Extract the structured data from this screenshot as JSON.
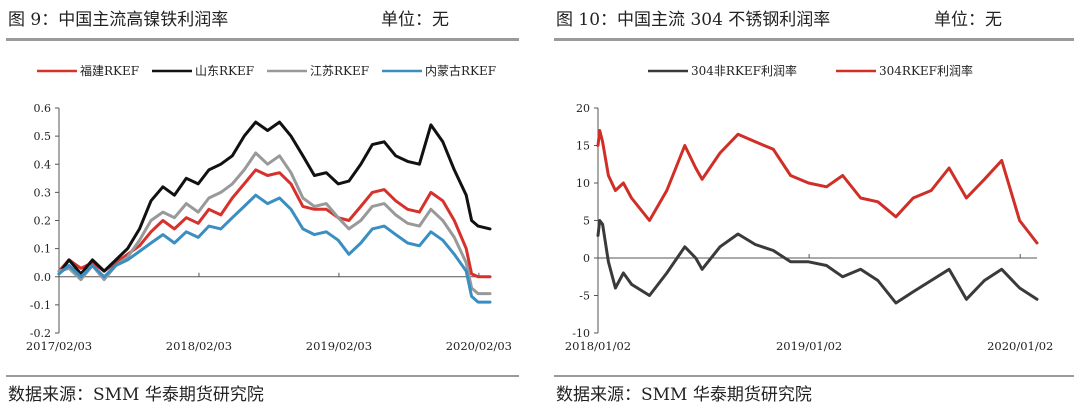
{
  "charts": [
    {
      "title": "图 9：中国主流高镍铁利润率",
      "unit": "单位：无",
      "source": "数据来源：SMM 华泰期货研究院"
    },
    {
      "title": "图 10：中国主流 304 不锈钢利润率",
      "unit": "单位：无",
      "source": "数据来源：SMM 华泰期货研究院"
    }
  ],
  "chart_data": [
    {
      "type": "line",
      "title": "图 9：中国主流高镍铁利润率",
      "ylim": [
        -0.2,
        0.6
      ],
      "y_ticks": [
        "-0.2",
        "-0.1",
        "0.0",
        "0.1",
        "0.2",
        "0.3",
        "0.4",
        "0.5",
        "0.6"
      ],
      "x_range": [
        "2017/02/03",
        "2020/03/03"
      ],
      "x_ticks": [
        "2017/02/03",
        "2018/02/03",
        "2019/02/03",
        "2020/02/03"
      ],
      "legend_position": "top",
      "grid": false,
      "series": [
        {
          "name": "福建RKEF",
          "color": "#d7312b",
          "points": [
            [
              "2017/02/03",
              0.02
            ],
            [
              "2017/03/01",
              0.06
            ],
            [
              "2017/04/01",
              0.03
            ],
            [
              "2017/05/01",
              0.05
            ],
            [
              "2017/06/01",
              0.02
            ],
            [
              "2017/07/01",
              0.05
            ],
            [
              "2017/08/01",
              0.08
            ],
            [
              "2017/09/01",
              0.11
            ],
            [
              "2017/10/01",
              0.16
            ],
            [
              "2017/11/01",
              0.2
            ],
            [
              "2017/12/01",
              0.17
            ],
            [
              "2018/01/01",
              0.21
            ],
            [
              "2018/02/01",
              0.19
            ],
            [
              "2018/03/01",
              0.24
            ],
            [
              "2018/04/01",
              0.22
            ],
            [
              "2018/05/01",
              0.28
            ],
            [
              "2018/06/01",
              0.33
            ],
            [
              "2018/07/01",
              0.38
            ],
            [
              "2018/08/01",
              0.36
            ],
            [
              "2018/09/01",
              0.37
            ],
            [
              "2018/10/01",
              0.33
            ],
            [
              "2018/11/01",
              0.25
            ],
            [
              "2018/12/01",
              0.24
            ],
            [
              "2019/01/01",
              0.24
            ],
            [
              "2019/02/01",
              0.21
            ],
            [
              "2019/03/01",
              0.2
            ],
            [
              "2019/04/01",
              0.25
            ],
            [
              "2019/05/01",
              0.3
            ],
            [
              "2019/06/01",
              0.31
            ],
            [
              "2019/07/01",
              0.27
            ],
            [
              "2019/08/01",
              0.24
            ],
            [
              "2019/09/01",
              0.23
            ],
            [
              "2019/10/01",
              0.3
            ],
            [
              "2019/11/01",
              0.27
            ],
            [
              "2019/12/01",
              0.2
            ],
            [
              "2020/01/01",
              0.1
            ],
            [
              "2020/01/15",
              0.01
            ],
            [
              "2020/02/01",
              0.0
            ],
            [
              "2020/03/03",
              0.0
            ]
          ]
        },
        {
          "name": "山东RKEF",
          "color": "#111111",
          "points": [
            [
              "2017/02/03",
              0.01
            ],
            [
              "2017/03/01",
              0.06
            ],
            [
              "2017/04/01",
              0.01
            ],
            [
              "2017/05/01",
              0.06
            ],
            [
              "2017/06/01",
              0.02
            ],
            [
              "2017/07/01",
              0.06
            ],
            [
              "2017/08/01",
              0.1
            ],
            [
              "2017/09/01",
              0.17
            ],
            [
              "2017/10/01",
              0.27
            ],
            [
              "2017/11/01",
              0.32
            ],
            [
              "2017/12/01",
              0.29
            ],
            [
              "2018/01/01",
              0.35
            ],
            [
              "2018/02/01",
              0.33
            ],
            [
              "2018/03/01",
              0.38
            ],
            [
              "2018/04/01",
              0.4
            ],
            [
              "2018/05/01",
              0.43
            ],
            [
              "2018/06/01",
              0.5
            ],
            [
              "2018/07/01",
              0.55
            ],
            [
              "2018/08/01",
              0.52
            ],
            [
              "2018/09/01",
              0.55
            ],
            [
              "2018/10/01",
              0.5
            ],
            [
              "2018/11/01",
              0.43
            ],
            [
              "2018/12/01",
              0.36
            ],
            [
              "2019/01/01",
              0.37
            ],
            [
              "2019/02/01",
              0.33
            ],
            [
              "2019/03/01",
              0.34
            ],
            [
              "2019/04/01",
              0.4
            ],
            [
              "2019/05/01",
              0.47
            ],
            [
              "2019/06/01",
              0.48
            ],
            [
              "2019/07/01",
              0.43
            ],
            [
              "2019/08/01",
              0.41
            ],
            [
              "2019/09/01",
              0.4
            ],
            [
              "2019/10/01",
              0.54
            ],
            [
              "2019/11/01",
              0.48
            ],
            [
              "2019/12/01",
              0.38
            ],
            [
              "2020/01/01",
              0.29
            ],
            [
              "2020/01/15",
              0.2
            ],
            [
              "2020/02/01",
              0.18
            ],
            [
              "2020/03/03",
              0.17
            ]
          ]
        },
        {
          "name": "江苏RKEF",
          "color": "#999999",
          "points": [
            [
              "2017/02/03",
              0.02
            ],
            [
              "2017/03/01",
              0.03
            ],
            [
              "2017/04/01",
              -0.01
            ],
            [
              "2017/05/01",
              0.04
            ],
            [
              "2017/06/01",
              -0.01
            ],
            [
              "2017/07/01",
              0.04
            ],
            [
              "2017/08/01",
              0.07
            ],
            [
              "2017/09/01",
              0.13
            ],
            [
              "2017/10/01",
              0.2
            ],
            [
              "2017/11/01",
              0.23
            ],
            [
              "2017/12/01",
              0.21
            ],
            [
              "2018/01/01",
              0.26
            ],
            [
              "2018/02/01",
              0.23
            ],
            [
              "2018/03/01",
              0.28
            ],
            [
              "2018/04/01",
              0.3
            ],
            [
              "2018/05/01",
              0.33
            ],
            [
              "2018/06/01",
              0.38
            ],
            [
              "2018/07/01",
              0.44
            ],
            [
              "2018/08/01",
              0.4
            ],
            [
              "2018/09/01",
              0.43
            ],
            [
              "2018/10/01",
              0.37
            ],
            [
              "2018/11/01",
              0.28
            ],
            [
              "2018/12/01",
              0.25
            ],
            [
              "2019/01/01",
              0.26
            ],
            [
              "2019/02/01",
              0.21
            ],
            [
              "2019/03/01",
              0.17
            ],
            [
              "2019/04/01",
              0.2
            ],
            [
              "2019/05/01",
              0.25
            ],
            [
              "2019/06/01",
              0.26
            ],
            [
              "2019/07/01",
              0.22
            ],
            [
              "2019/08/01",
              0.19
            ],
            [
              "2019/09/01",
              0.18
            ],
            [
              "2019/10/01",
              0.24
            ],
            [
              "2019/11/01",
              0.2
            ],
            [
              "2019/12/01",
              0.14
            ],
            [
              "2020/01/01",
              0.05
            ],
            [
              "2020/01/15",
              -0.04
            ],
            [
              "2020/02/01",
              -0.06
            ],
            [
              "2020/03/03",
              -0.06
            ]
          ]
        },
        {
          "name": "内蒙古RKEF",
          "color": "#3a8ec2",
          "points": [
            [
              "2017/02/03",
              0.01
            ],
            [
              "2017/03/01",
              0.04
            ],
            [
              "2017/04/01",
              0.0
            ],
            [
              "2017/05/01",
              0.04
            ],
            [
              "2017/06/01",
              0.0
            ],
            [
              "2017/07/01",
              0.04
            ],
            [
              "2017/08/01",
              0.06
            ],
            [
              "2017/09/01",
              0.09
            ],
            [
              "2017/10/01",
              0.12
            ],
            [
              "2017/11/01",
              0.15
            ],
            [
              "2017/12/01",
              0.12
            ],
            [
              "2018/01/01",
              0.16
            ],
            [
              "2018/02/01",
              0.14
            ],
            [
              "2018/03/01",
              0.18
            ],
            [
              "2018/04/01",
              0.17
            ],
            [
              "2018/05/01",
              0.21
            ],
            [
              "2018/06/01",
              0.25
            ],
            [
              "2018/07/01",
              0.29
            ],
            [
              "2018/08/01",
              0.26
            ],
            [
              "2018/09/01",
              0.28
            ],
            [
              "2018/10/01",
              0.24
            ],
            [
              "2018/11/01",
              0.17
            ],
            [
              "2018/12/01",
              0.15
            ],
            [
              "2019/01/01",
              0.16
            ],
            [
              "2019/02/01",
              0.13
            ],
            [
              "2019/03/01",
              0.08
            ],
            [
              "2019/04/01",
              0.12
            ],
            [
              "2019/05/01",
              0.17
            ],
            [
              "2019/06/01",
              0.18
            ],
            [
              "2019/07/01",
              0.15
            ],
            [
              "2019/08/01",
              0.12
            ],
            [
              "2019/09/01",
              0.11
            ],
            [
              "2019/10/01",
              0.16
            ],
            [
              "2019/11/01",
              0.13
            ],
            [
              "2019/12/01",
              0.08
            ],
            [
              "2020/01/01",
              0.02
            ],
            [
              "2020/01/15",
              -0.07
            ],
            [
              "2020/02/01",
              -0.09
            ],
            [
              "2020/03/03",
              -0.09
            ]
          ]
        }
      ]
    },
    {
      "type": "line",
      "title": "图 10：中国主流 304 不锈钢利润率",
      "ylim": [
        -10,
        20
      ],
      "y_ticks": [
        "-10",
        "-5",
        "0",
        "5",
        "10",
        "15",
        "20"
      ],
      "x_range": [
        "2018/01/02",
        "2020/01/31"
      ],
      "x_ticks": [
        "2018/01/02",
        "2019/01/02",
        "2020/01/02"
      ],
      "legend_position": "top",
      "grid": false,
      "series": [
        {
          "name": "304非RKEF利润率",
          "color": "#3a3a3a",
          "points": [
            [
              "2018/01/02",
              3.0
            ],
            [
              "2018/01/05",
              5.0
            ],
            [
              "2018/01/10",
              4.5
            ],
            [
              "2018/01/20",
              -0.5
            ],
            [
              "2018/02/01",
              -4.0
            ],
            [
              "2018/02/15",
              -2.0
            ],
            [
              "2018/03/01",
              -3.5
            ],
            [
              "2018/04/01",
              -5.0
            ],
            [
              "2018/05/01",
              -2.0
            ],
            [
              "2018/06/01",
              1.5
            ],
            [
              "2018/06/20",
              0.0
            ],
            [
              "2018/07/01",
              -1.5
            ],
            [
              "2018/08/01",
              1.5
            ],
            [
              "2018/09/01",
              3.2
            ],
            [
              "2018/10/01",
              1.8
            ],
            [
              "2018/11/01",
              1.0
            ],
            [
              "2018/12/01",
              -0.5
            ],
            [
              "2019/01/01",
              -0.5
            ],
            [
              "2019/02/01",
              -1.0
            ],
            [
              "2019/03/01",
              -2.5
            ],
            [
              "2019/04/01",
              -1.5
            ],
            [
              "2019/05/01",
              -3.0
            ],
            [
              "2019/06/01",
              -6.0
            ],
            [
              "2019/07/01",
              -4.5
            ],
            [
              "2019/08/01",
              -3.0
            ],
            [
              "2019/09/01",
              -1.5
            ],
            [
              "2019/10/01",
              -5.5
            ],
            [
              "2019/11/01",
              -3.0
            ],
            [
              "2019/12/01",
              -1.5
            ],
            [
              "2020/01/01",
              -4.0
            ],
            [
              "2020/01/31",
              -5.5
            ]
          ]
        },
        {
          "name": "304RKEF利润率",
          "color": "#cf2f27",
          "points": [
            [
              "2018/01/02",
              15.0
            ],
            [
              "2018/01/05",
              17.0
            ],
            [
              "2018/01/10",
              15.5
            ],
            [
              "2018/01/20",
              11.0
            ],
            [
              "2018/02/01",
              9.0
            ],
            [
              "2018/02/15",
              10.0
            ],
            [
              "2018/03/01",
              8.0
            ],
            [
              "2018/04/01",
              5.0
            ],
            [
              "2018/05/01",
              9.0
            ],
            [
              "2018/06/01",
              15.0
            ],
            [
              "2018/06/20",
              12.0
            ],
            [
              "2018/07/01",
              10.5
            ],
            [
              "2018/08/01",
              14.0
            ],
            [
              "2018/09/01",
              16.5
            ],
            [
              "2018/10/01",
              15.5
            ],
            [
              "2018/11/01",
              14.5
            ],
            [
              "2018/12/01",
              11.0
            ],
            [
              "2019/01/01",
              10.0
            ],
            [
              "2019/02/01",
              9.5
            ],
            [
              "2019/03/01",
              11.0
            ],
            [
              "2019/04/01",
              8.0
            ],
            [
              "2019/05/01",
              7.5
            ],
            [
              "2019/06/01",
              5.5
            ],
            [
              "2019/07/01",
              8.0
            ],
            [
              "2019/08/01",
              9.0
            ],
            [
              "2019/09/01",
              12.0
            ],
            [
              "2019/10/01",
              8.0
            ],
            [
              "2019/11/01",
              10.5
            ],
            [
              "2019/12/01",
              13.0
            ],
            [
              "2020/01/01",
              5.0
            ],
            [
              "2020/01/31",
              2.0
            ]
          ]
        }
      ]
    }
  ]
}
